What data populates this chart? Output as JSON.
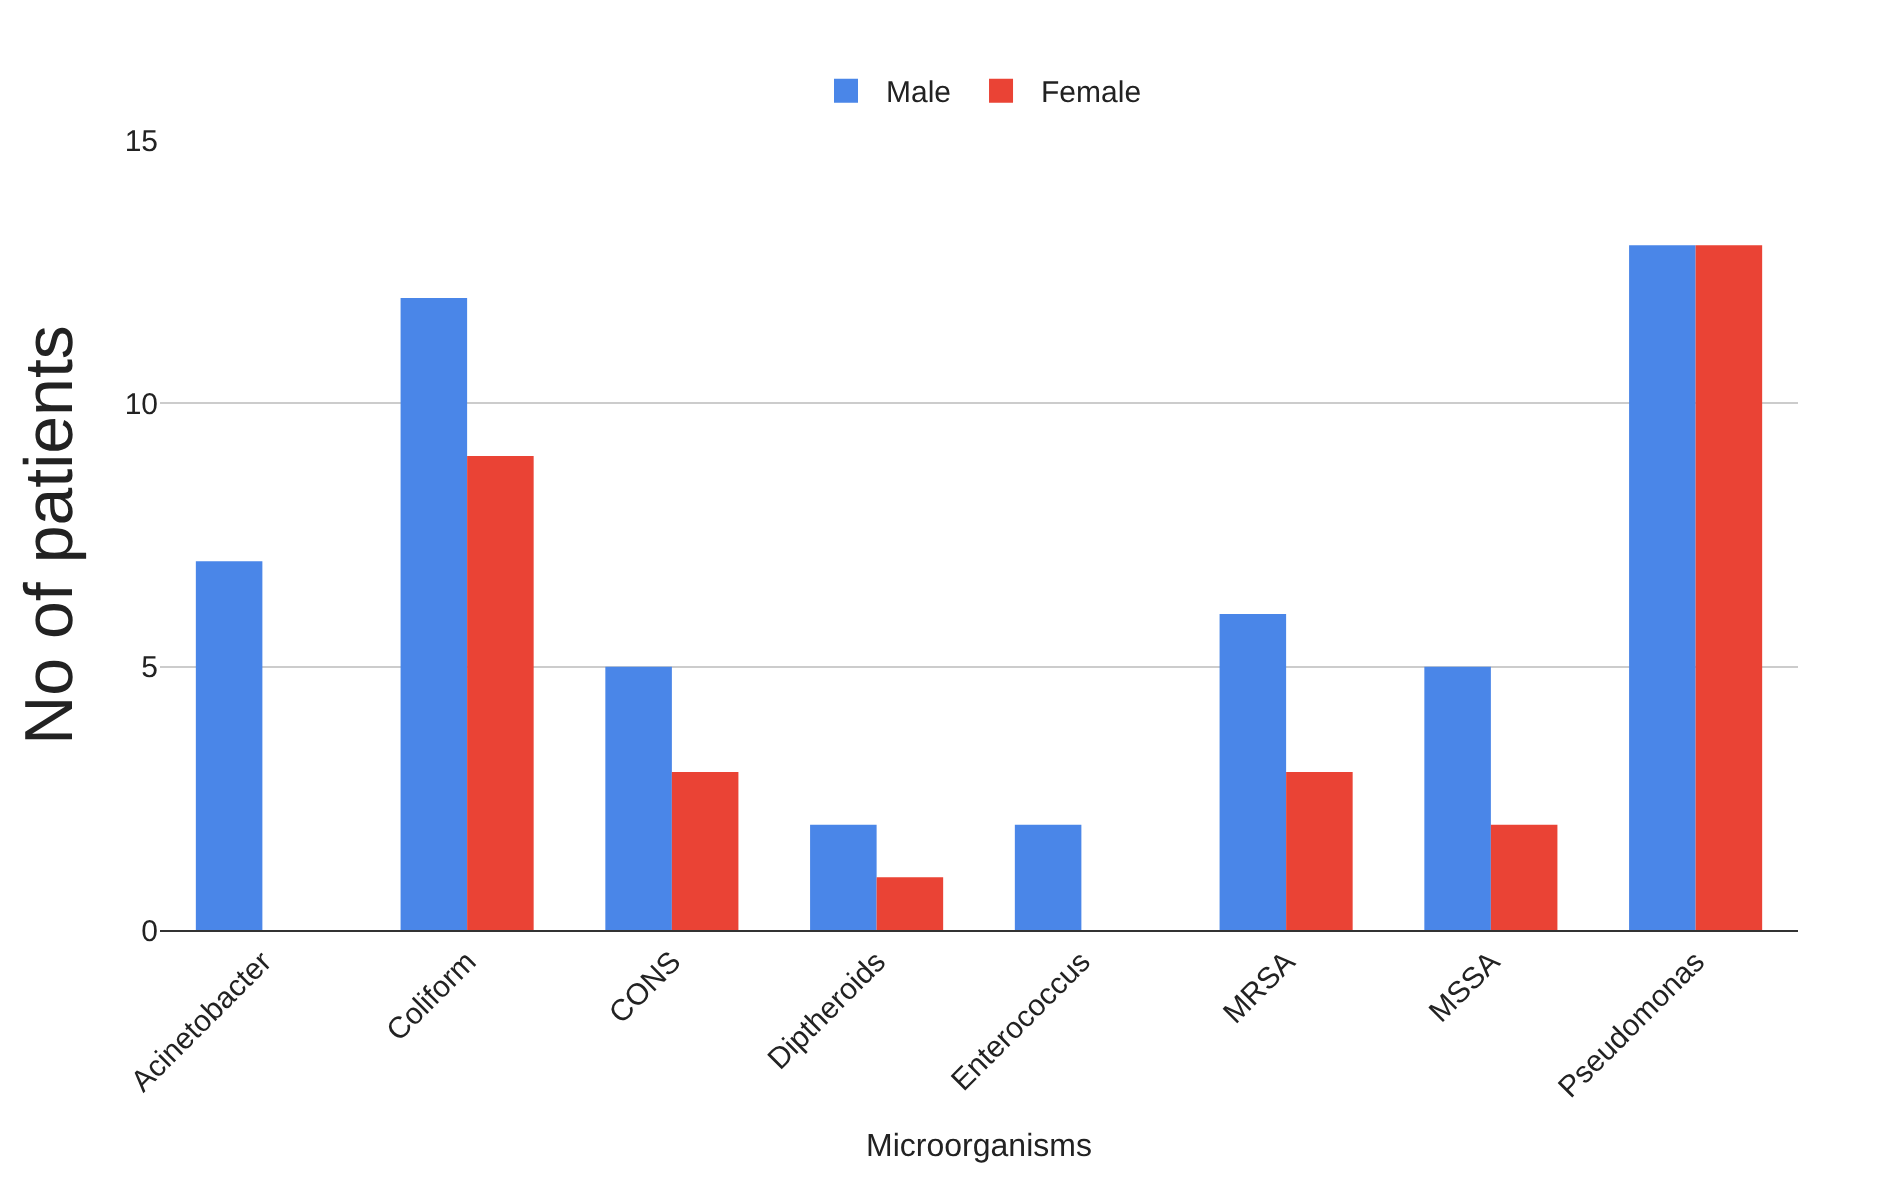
{
  "chart_data": {
    "type": "bar",
    "xlabel": "Microorganisms",
    "ylabel": "No of patients",
    "categories": [
      "Acinetobacter",
      "Coliform",
      "CONS",
      "Diptheroids",
      "Enterococcus",
      "MRSA",
      "MSSA",
      "Pseudomonas"
    ],
    "series": [
      {
        "name": "Male",
        "color": "#4a86e8",
        "values": [
          7,
          12,
          5,
          2,
          2,
          6,
          5,
          13
        ]
      },
      {
        "name": "Female",
        "color": "#ea4335",
        "values": [
          0,
          9,
          3,
          1,
          0,
          3,
          2,
          13
        ]
      }
    ],
    "ylim": [
      0,
      15
    ],
    "yticks": [
      0,
      5,
      10,
      15
    ],
    "grid": "y",
    "legend": "top"
  }
}
